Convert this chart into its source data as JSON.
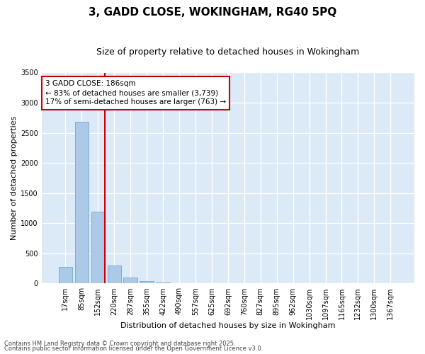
{
  "title": "3, GADD CLOSE, WOKINGHAM, RG40 5PQ",
  "subtitle": "Size of property relative to detached houses in Wokingham",
  "xlabel": "Distribution of detached houses by size in Wokingham",
  "ylabel": "Number of detached properties",
  "categories": [
    "17sqm",
    "85sqm",
    "152sqm",
    "220sqm",
    "287sqm",
    "355sqm",
    "422sqm",
    "490sqm",
    "557sqm",
    "625sqm",
    "692sqm",
    "760sqm",
    "827sqm",
    "895sqm",
    "962sqm",
    "1030sqm",
    "1097sqm",
    "1165sqm",
    "1232sqm",
    "1300sqm",
    "1367sqm"
  ],
  "values": [
    270,
    2680,
    1190,
    300,
    95,
    40,
    20,
    0,
    0,
    0,
    0,
    0,
    0,
    0,
    0,
    0,
    0,
    0,
    0,
    0,
    0
  ],
  "bar_color": "#adc9e8",
  "bar_edge_color": "#6aaad4",
  "vline_color": "#cc0000",
  "annotation_title": "3 GADD CLOSE: 186sqm",
  "annotation_line1": "← 83% of detached houses are smaller (3,739)",
  "annotation_line2": "17% of semi-detached houses are larger (763) →",
  "annotation_box_color": "#cc0000",
  "ylim": [
    0,
    3500
  ],
  "yticks": [
    0,
    500,
    1000,
    1500,
    2000,
    2500,
    3000,
    3500
  ],
  "bg_color": "#dce9f7",
  "grid_color": "#ffffff",
  "fig_bg_color": "#ffffff",
  "footnote1": "Contains HM Land Registry data © Crown copyright and database right 2025.",
  "footnote2": "Contains public sector information licensed under the Open Government Licence v3.0.",
  "title_fontsize": 11,
  "subtitle_fontsize": 9,
  "axis_label_fontsize": 8,
  "tick_fontsize": 7,
  "annot_fontsize": 7.5
}
